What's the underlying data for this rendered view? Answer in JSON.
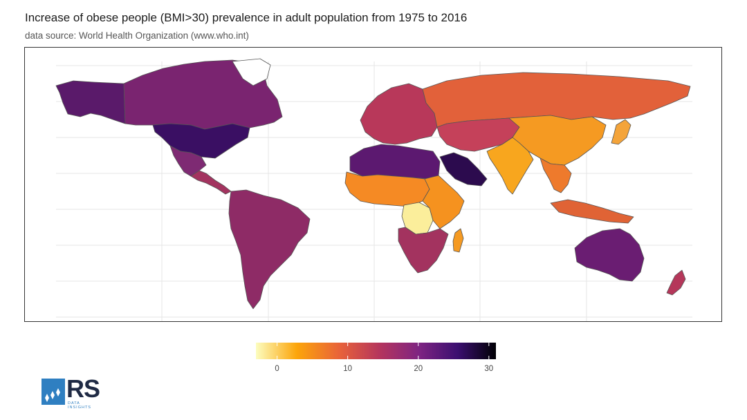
{
  "title": "Increase of obese people (BMI>30) prevalence in adult population from 1975 to 2016",
  "subtitle": "data source: World Health Organization (www.who.int)",
  "legend": {
    "ticks": [
      "0",
      "10",
      "20",
      "30"
    ],
    "tick_values": [
      0,
      10,
      20,
      30
    ],
    "range": [
      -3,
      31
    ],
    "colors": [
      "#fcfdbf",
      "#fca50a",
      "#e8623a",
      "#b3345e",
      "#7e2482",
      "#3b0f70",
      "#000004"
    ]
  },
  "logo": {
    "text": "RS",
    "subtext": "DATA INSIGHTS"
  },
  "regions": [
    {
      "name": "canada",
      "color": "#7a2470"
    },
    {
      "name": "alaska",
      "color": "#5a1a6a"
    },
    {
      "name": "greenland",
      "color": "#ffffff"
    },
    {
      "name": "usa",
      "color": "#3a0f63"
    },
    {
      "name": "mexico",
      "color": "#7e2a73"
    },
    {
      "name": "central-america",
      "color": "#a3335f"
    },
    {
      "name": "south-america",
      "color": "#8e2b66"
    },
    {
      "name": "europe",
      "color": "#b8385a"
    },
    {
      "name": "russia",
      "color": "#e2613a"
    },
    {
      "name": "north-africa",
      "color": "#5c1970"
    },
    {
      "name": "arabia",
      "color": "#2c0b4e"
    },
    {
      "name": "west-africa",
      "color": "#f58a24"
    },
    {
      "name": "central-africa",
      "color": "#fbee9b"
    },
    {
      "name": "east-africa",
      "color": "#f5921f"
    },
    {
      "name": "southern-africa",
      "color": "#a3335f"
    },
    {
      "name": "central-asia",
      "color": "#c5415a"
    },
    {
      "name": "china",
      "color": "#f59a22"
    },
    {
      "name": "india",
      "color": "#f8a61e"
    },
    {
      "name": "southeast-asia",
      "color": "#ee7a2c"
    },
    {
      "name": "japan",
      "color": "#f4a43a"
    },
    {
      "name": "australia",
      "color": "#6a1d72"
    },
    {
      "name": "new-zealand",
      "color": "#b5375a"
    },
    {
      "name": "indonesia",
      "color": "#e06335"
    },
    {
      "name": "madagascar",
      "color": "#f59a22"
    }
  ]
}
